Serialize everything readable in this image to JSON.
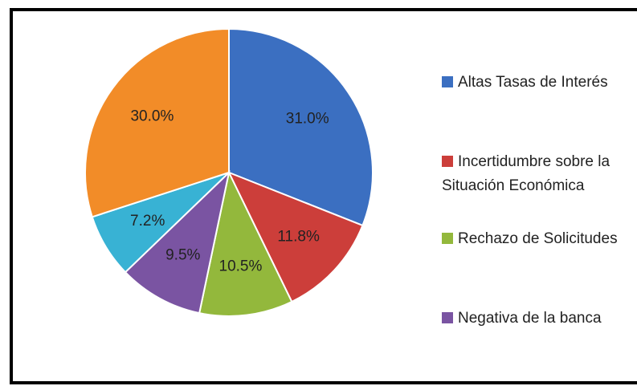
{
  "chart_data": {
    "type": "pie",
    "categories": [
      "Altas Tasas de Interés",
      "Incertidumbre sobre la Situación Económica",
      "Rechazo de Solicitudes",
      "Negativa de la banca",
      null,
      null
    ],
    "values": [
      31.0,
      11.8,
      10.5,
      9.5,
      7.2,
      30.0
    ],
    "value_labels": [
      "31.0%",
      "11.8%",
      "10.5%",
      "9.5%",
      "7.2%",
      "30.0%"
    ],
    "colors": [
      "#3b6fc1",
      "#cc3e3a",
      "#93b83c",
      "#7a54a2",
      "#38b2d4",
      "#f28c28"
    ]
  }
}
